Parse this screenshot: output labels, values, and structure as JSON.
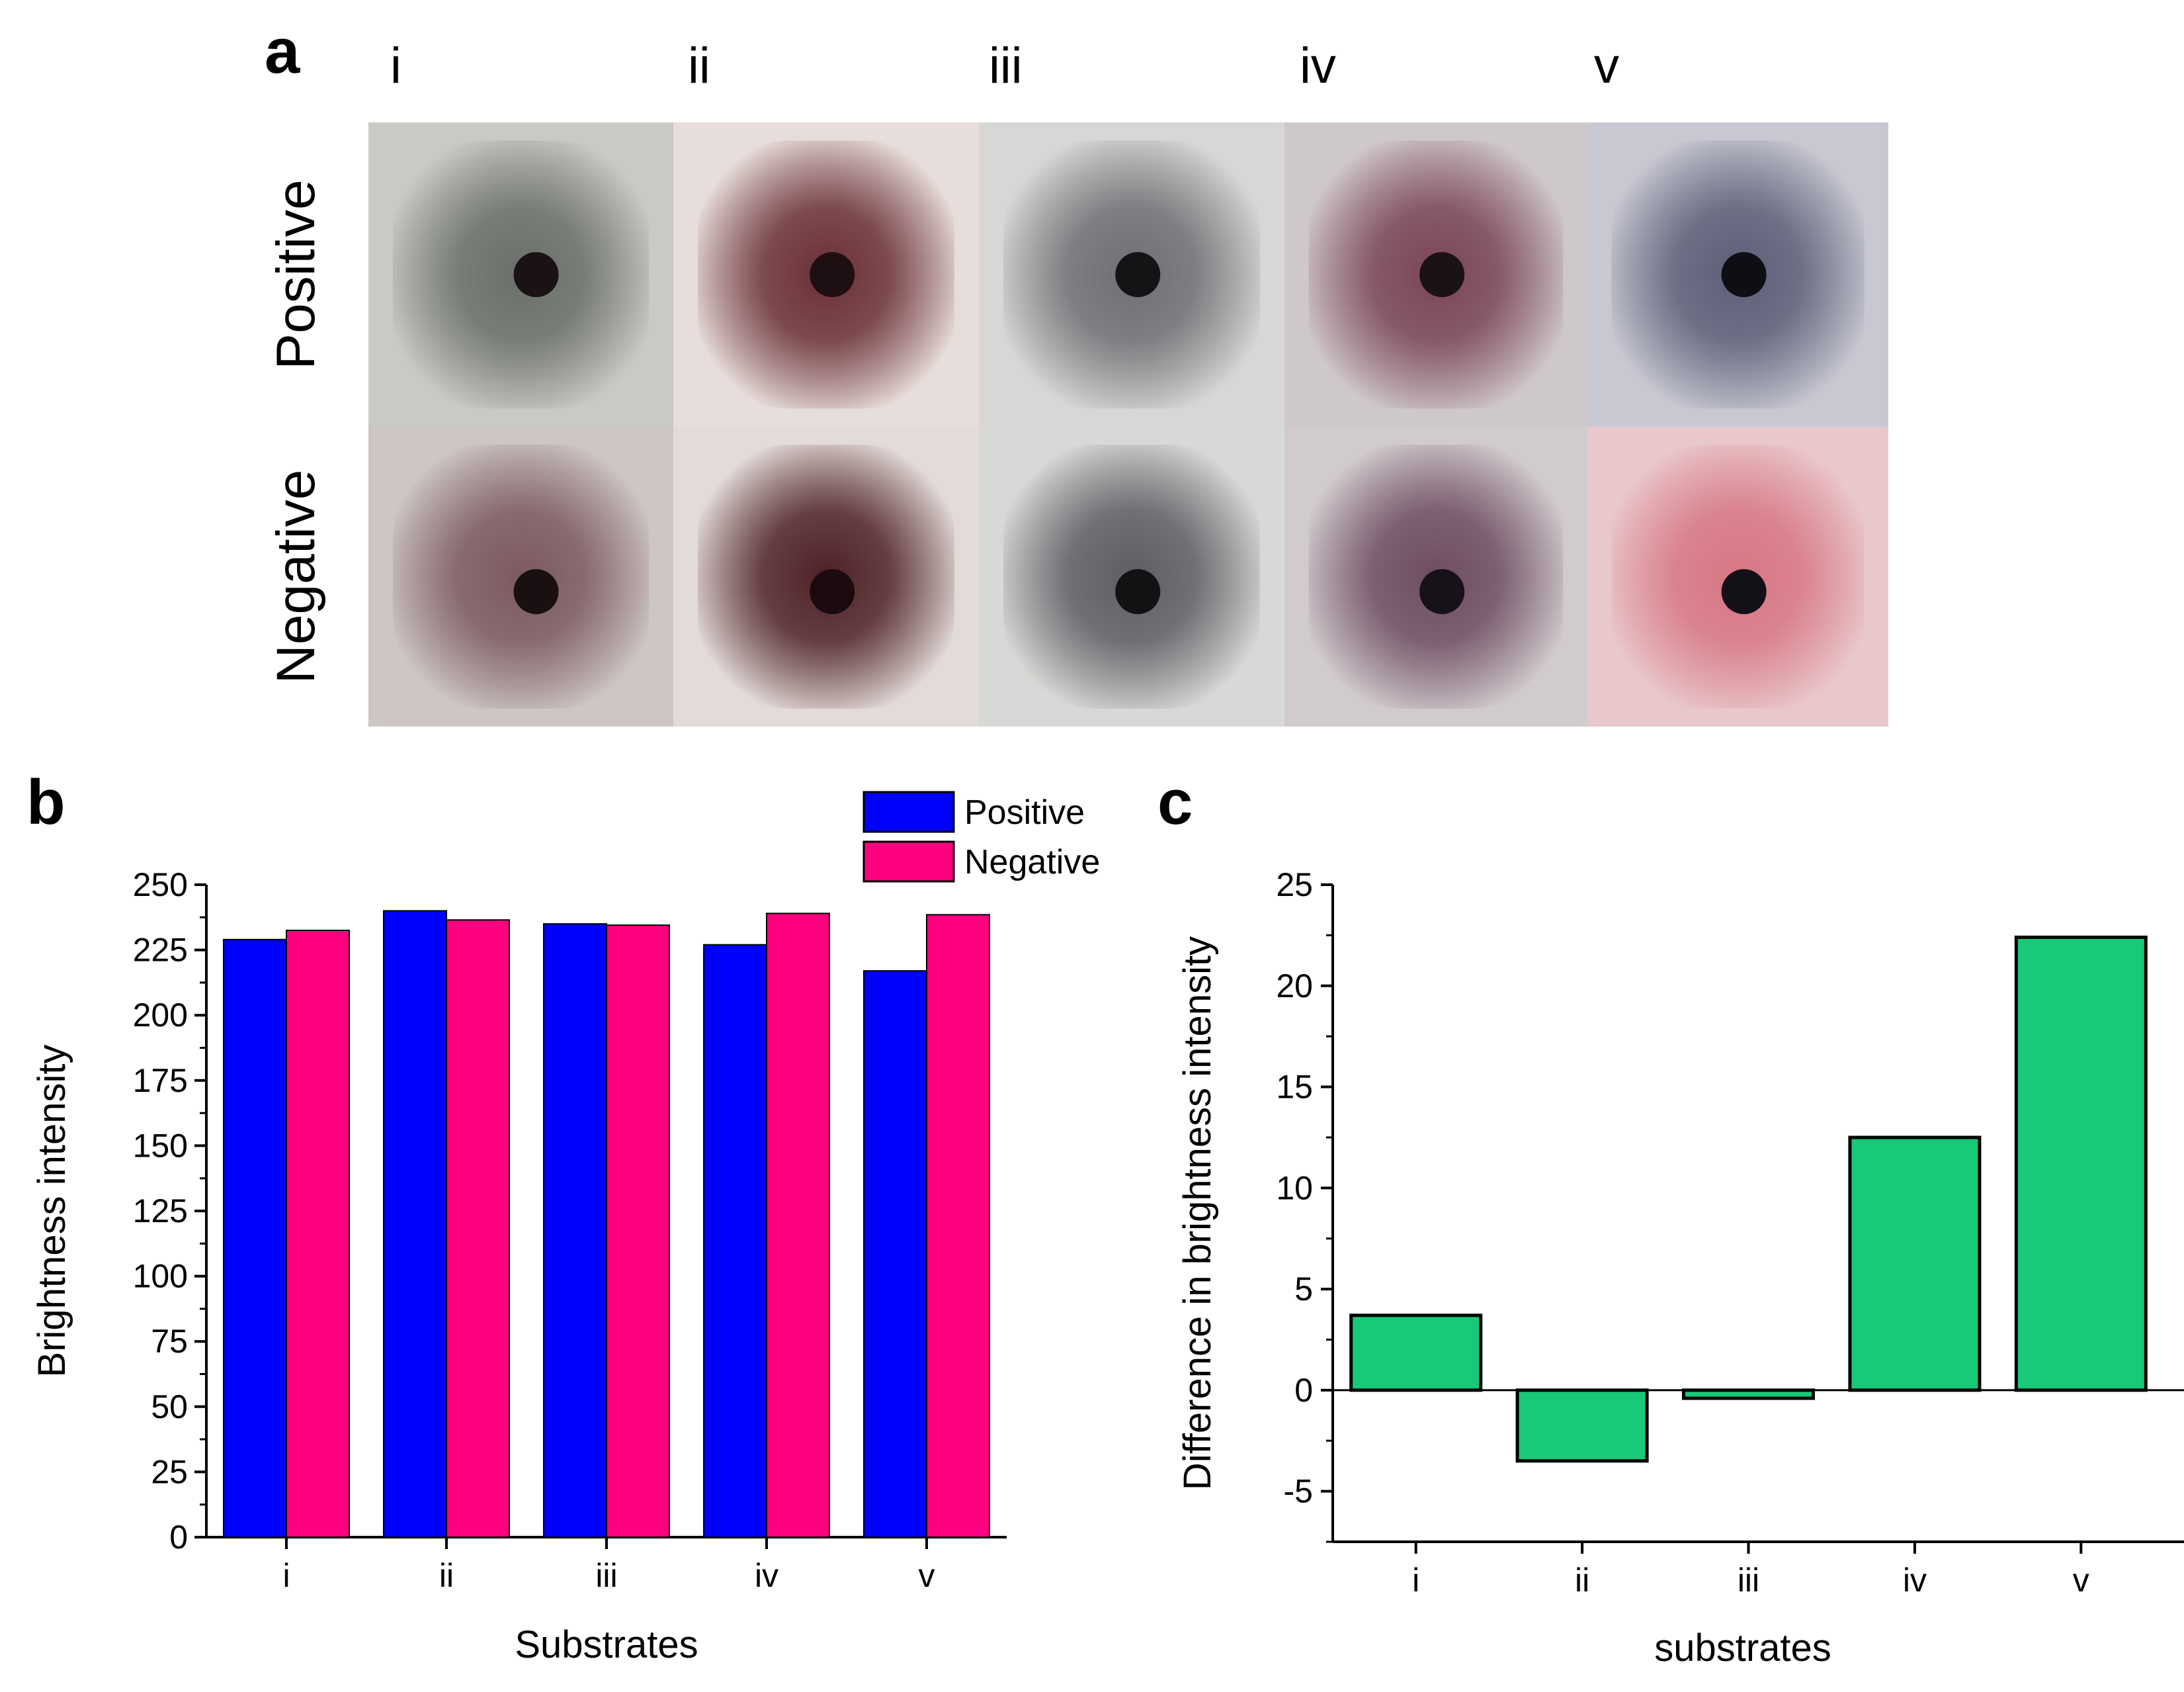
{
  "panels": {
    "a": {
      "label": "a",
      "column_labels": [
        "i",
        "ii",
        "iii",
        "iv",
        "v"
      ],
      "row_labels": [
        "Positive",
        "Negative"
      ],
      "samples": [
        [
          {
            "bg": "#c9cac4",
            "mid": "#6b6f6a",
            "dot": "#1a1214"
          },
          {
            "bg": "#e7ddda",
            "mid": "#6a3036",
            "dot": "#1e0f12"
          },
          {
            "bg": "#d7d7d5",
            "mid": "#6e6f73",
            "dot": "#141316"
          },
          {
            "bg": "#cfc8c9",
            "mid": "#7a4558",
            "dot": "#1a1216"
          },
          {
            "bg": "#c8c8d2",
            "mid": "#5e5f78",
            "dot": "#0f0e14"
          }
        ],
        [
          {
            "bg": "#cdc6c3",
            "mid": "#7c5a60",
            "dot": "#1a1012"
          },
          {
            "bg": "#e3dbd8",
            "mid": "#4e2227",
            "dot": "#1c0b0e"
          },
          {
            "bg": "#d8d8d6",
            "mid": "#5d5e63",
            "dot": "#121214"
          },
          {
            "bg": "#d1cbcd",
            "mid": "#6e4d62",
            "dot": "#17111a"
          },
          {
            "bg": "#e9c8cb",
            "mid": "#d77784",
            "dot": "#141018"
          }
        ]
      ]
    },
    "b": {
      "label": "b"
    },
    "c": {
      "label": "c"
    }
  },
  "chart_data": [
    {
      "panel": "b",
      "type": "bar",
      "categories": [
        "i",
        "ii",
        "iii",
        "iv",
        "v"
      ],
      "series": [
        {
          "name": "Positive",
          "color": "#0000ff",
          "values": [
            229,
            240,
            235,
            227,
            217
          ]
        },
        {
          "name": "Negative",
          "color": "#ff0080",
          "values": [
            232.5,
            236.5,
            234.5,
            239,
            238.5
          ]
        }
      ],
      "xlabel": "Substrates",
      "ylabel": "Brightness intensity",
      "ylim": [
        0,
        250
      ],
      "yticks": [
        "0",
        "25",
        "50",
        "75",
        "100",
        "125",
        "150",
        "175",
        "200",
        "225",
        "250"
      ],
      "legend_position": "top-right"
    },
    {
      "panel": "c",
      "type": "bar",
      "categories": [
        "i",
        "ii",
        "iii",
        "iv",
        "v"
      ],
      "values": [
        3.7,
        -3.5,
        -0.4,
        12.5,
        22.4
      ],
      "color": "#18c97a",
      "xlabel": "substrates",
      "ylabel": "Difference in brightness intensity",
      "ylim": [
        -7.5,
        25
      ],
      "yticks": [
        "-5",
        "0",
        "5",
        "10",
        "15",
        "20",
        "25"
      ]
    }
  ]
}
